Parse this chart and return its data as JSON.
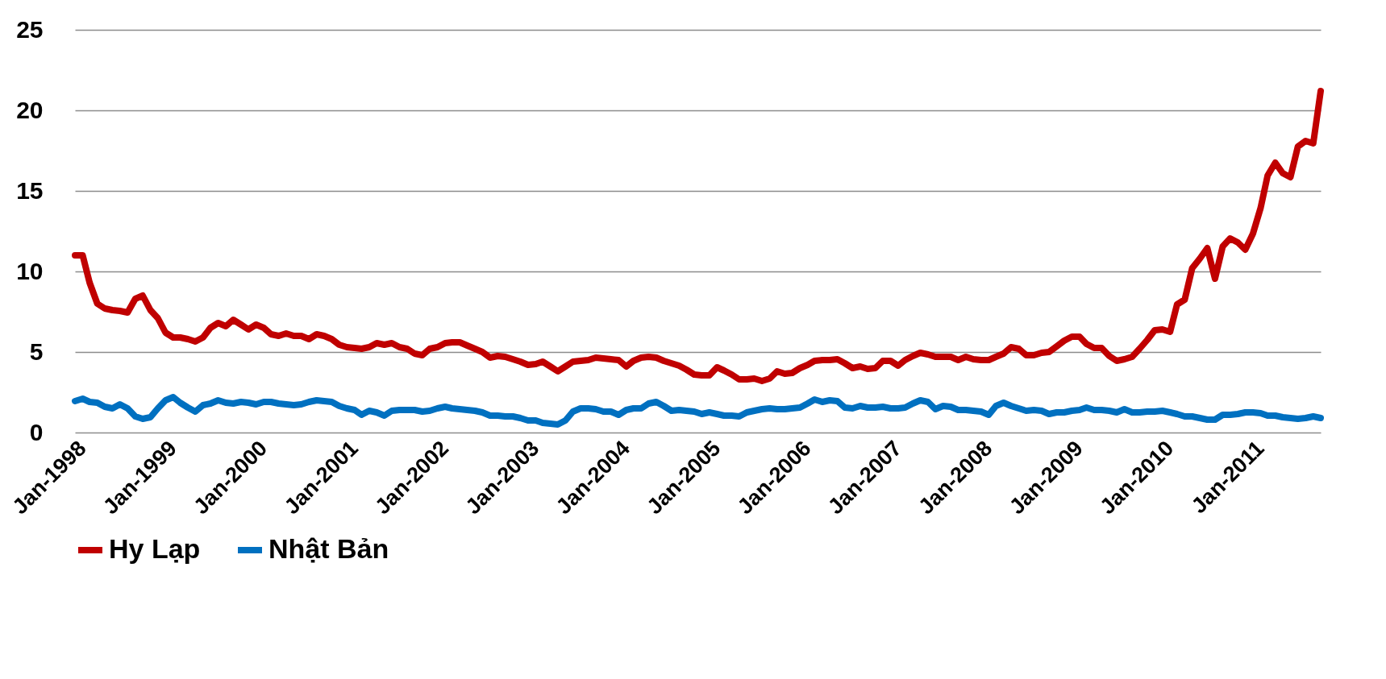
{
  "chart_data": {
    "type": "line",
    "x": [
      "1998-01",
      "1998-02",
      "1998-03",
      "1998-04",
      "1998-05",
      "1998-06",
      "1998-07",
      "1998-08",
      "1998-09",
      "1998-10",
      "1998-11",
      "1998-12",
      "1999-01",
      "1999-02",
      "1999-03",
      "1999-04",
      "1999-05",
      "1999-06",
      "1999-07",
      "1999-08",
      "1999-09",
      "1999-10",
      "1999-11",
      "1999-12",
      "2000-01",
      "2000-02",
      "2000-03",
      "2000-04",
      "2000-05",
      "2000-06",
      "2000-07",
      "2000-08",
      "2000-09",
      "2000-10",
      "2000-11",
      "2000-12",
      "2001-01",
      "2001-02",
      "2001-03",
      "2001-04",
      "2001-05",
      "2001-06",
      "2001-07",
      "2001-08",
      "2001-09",
      "2001-10",
      "2001-11",
      "2001-12",
      "2002-01",
      "2002-02",
      "2002-03",
      "2002-04",
      "2002-05",
      "2002-06",
      "2002-07",
      "2002-08",
      "2002-09",
      "2002-10",
      "2002-11",
      "2002-12",
      "2003-01",
      "2003-02",
      "2003-03",
      "2003-04",
      "2003-05",
      "2003-06",
      "2003-07",
      "2003-08",
      "2003-09",
      "2003-10",
      "2003-11",
      "2003-12",
      "2004-01",
      "2004-02",
      "2004-03",
      "2004-04",
      "2004-05",
      "2004-06",
      "2004-07",
      "2004-08",
      "2004-09",
      "2004-10",
      "2004-11",
      "2004-12",
      "2005-01",
      "2005-02",
      "2005-03",
      "2005-04",
      "2005-05",
      "2005-06",
      "2005-07",
      "2005-08",
      "2005-09",
      "2005-10",
      "2005-11",
      "2005-12",
      "2006-01",
      "2006-02",
      "2006-03",
      "2006-04",
      "2006-05",
      "2006-06",
      "2006-07",
      "2006-08",
      "2006-09",
      "2006-10",
      "2006-11",
      "2006-12",
      "2007-01",
      "2007-02",
      "2007-03",
      "2007-04",
      "2007-05",
      "2007-06",
      "2007-07",
      "2007-08",
      "2007-09",
      "2007-10",
      "2007-11",
      "2007-12",
      "2008-01",
      "2008-02",
      "2008-03",
      "2008-04",
      "2008-05",
      "2008-06",
      "2008-07",
      "2008-08",
      "2008-09",
      "2008-10",
      "2008-11",
      "2008-12",
      "2009-01",
      "2009-02",
      "2009-03",
      "2009-04",
      "2009-05",
      "2009-06",
      "2009-07",
      "2009-08",
      "2009-09",
      "2009-10",
      "2009-11",
      "2009-12",
      "2010-01",
      "2010-02",
      "2010-03",
      "2010-04",
      "2010-05",
      "2010-06",
      "2010-07",
      "2010-08",
      "2010-09",
      "2010-10",
      "2010-11",
      "2010-12",
      "2011-01",
      "2011-02",
      "2011-03",
      "2011-04",
      "2011-05",
      "2011-06",
      "2011-07",
      "2011-08",
      "2011-09",
      "2011-10"
    ],
    "series": [
      {
        "name": "Hy Lạp",
        "color": "#c00000",
        "values": [
          11.0,
          11.0,
          9.3,
          8.0,
          7.7,
          7.6,
          7.55,
          7.45,
          8.3,
          8.5,
          7.6,
          7.1,
          6.2,
          5.9,
          5.9,
          5.8,
          5.65,
          5.9,
          6.5,
          6.8,
          6.6,
          7.0,
          6.7,
          6.4,
          6.7,
          6.5,
          6.1,
          6.0,
          6.15,
          6.0,
          6.0,
          5.8,
          6.1,
          6.0,
          5.8,
          5.45,
          5.3,
          5.25,
          5.2,
          5.3,
          5.55,
          5.45,
          5.55,
          5.3,
          5.2,
          4.9,
          4.8,
          5.2,
          5.3,
          5.55,
          5.6,
          5.6,
          5.4,
          5.2,
          5.0,
          4.65,
          4.75,
          4.7,
          4.55,
          4.4,
          4.2,
          4.25,
          4.4,
          4.1,
          3.8,
          4.1,
          4.4,
          4.45,
          4.5,
          4.65,
          4.6,
          4.55,
          4.5,
          4.1,
          4.45,
          4.65,
          4.7,
          4.65,
          4.45,
          4.3,
          4.15,
          3.9,
          3.6,
          3.55,
          3.55,
          4.05,
          3.85,
          3.6,
          3.3,
          3.3,
          3.35,
          3.2,
          3.35,
          3.8,
          3.65,
          3.7,
          4.0,
          4.2,
          4.45,
          4.5,
          4.5,
          4.55,
          4.3,
          4.0,
          4.1,
          3.95,
          4.0,
          4.45,
          4.45,
          4.15,
          4.5,
          4.75,
          4.95,
          4.85,
          4.7,
          4.7,
          4.7,
          4.5,
          4.7,
          4.55,
          4.5,
          4.5,
          4.7,
          4.9,
          5.3,
          5.2,
          4.8,
          4.8,
          4.95,
          5.0,
          5.35,
          5.7,
          5.95,
          5.95,
          5.5,
          5.25,
          5.25,
          4.75,
          4.45,
          4.55,
          4.7,
          5.2,
          5.75,
          6.35,
          6.4,
          6.25,
          7.95,
          8.25,
          10.2,
          10.8,
          11.45,
          9.55,
          11.55,
          12.05,
          11.8,
          11.35,
          12.35,
          13.95,
          15.95,
          16.75,
          16.1,
          15.85,
          17.75,
          18.1,
          17.95,
          21.2
        ]
      },
      {
        "name": "Nhật Bản",
        "color": "#0070c0",
        "values": [
          1.95,
          2.1,
          1.9,
          1.85,
          1.6,
          1.5,
          1.75,
          1.5,
          1.0,
          0.85,
          0.95,
          1.5,
          2.0,
          2.2,
          1.85,
          1.55,
          1.3,
          1.7,
          1.8,
          2.0,
          1.85,
          1.8,
          1.9,
          1.85,
          1.75,
          1.9,
          1.9,
          1.8,
          1.75,
          1.7,
          1.75,
          1.9,
          2.0,
          1.95,
          1.9,
          1.65,
          1.5,
          1.4,
          1.1,
          1.35,
          1.25,
          1.05,
          1.35,
          1.4,
          1.4,
          1.4,
          1.3,
          1.35,
          1.5,
          1.6,
          1.5,
          1.45,
          1.4,
          1.35,
          1.25,
          1.05,
          1.05,
          1.0,
          1.0,
          0.9,
          0.75,
          0.75,
          0.6,
          0.55,
          0.5,
          0.75,
          1.3,
          1.5,
          1.5,
          1.45,
          1.3,
          1.3,
          1.1,
          1.4,
          1.5,
          1.5,
          1.8,
          1.9,
          1.65,
          1.35,
          1.4,
          1.35,
          1.3,
          1.15,
          1.25,
          1.15,
          1.05,
          1.05,
          1.0,
          1.25,
          1.35,
          1.45,
          1.5,
          1.45,
          1.45,
          1.5,
          1.55,
          1.8,
          2.05,
          1.9,
          2.0,
          1.95,
          1.55,
          1.5,
          1.65,
          1.55,
          1.55,
          1.6,
          1.5,
          1.5,
          1.55,
          1.8,
          2.0,
          1.9,
          1.45,
          1.65,
          1.6,
          1.4,
          1.4,
          1.35,
          1.3,
          1.1,
          1.65,
          1.85,
          1.65,
          1.5,
          1.35,
          1.4,
          1.35,
          1.15,
          1.25,
          1.25,
          1.35,
          1.4,
          1.55,
          1.4,
          1.4,
          1.35,
          1.25,
          1.45,
          1.25,
          1.25,
          1.3,
          1.3,
          1.35,
          1.25,
          1.15,
          1.0,
          1.0,
          0.9,
          0.8,
          0.8,
          1.1,
          1.1,
          1.15,
          1.25,
          1.25,
          1.2,
          1.05,
          1.05,
          0.95,
          0.9,
          0.85,
          0.9,
          1.0,
          0.9
        ]
      }
    ],
    "xlim": [
      "1998-01",
      "2011-10"
    ],
    "xticks": [
      {
        "value": "1998-01",
        "label": "Jan-1998"
      },
      {
        "value": "1999-01",
        "label": "Jan-1999"
      },
      {
        "value": "2000-01",
        "label": "Jan-2000"
      },
      {
        "value": "2001-01",
        "label": "Jan-2001"
      },
      {
        "value": "2002-01",
        "label": "Jan-2002"
      },
      {
        "value": "2003-01",
        "label": "Jan-2003"
      },
      {
        "value": "2004-01",
        "label": "Jan-2004"
      },
      {
        "value": "2005-01",
        "label": "Jan-2005"
      },
      {
        "value": "2006-01",
        "label": "Jan-2006"
      },
      {
        "value": "2007-01",
        "label": "Jan-2007"
      },
      {
        "value": "2008-01",
        "label": "Jan-2008"
      },
      {
        "value": "2009-01",
        "label": "Jan-2009"
      },
      {
        "value": "2010-01",
        "label": "Jan-2010"
      },
      {
        "value": "2011-01",
        "label": "Jan-2011"
      }
    ],
    "ylim": [
      0,
      25
    ],
    "yticks": [
      0,
      5,
      10,
      15,
      20,
      25
    ],
    "grid": "y",
    "legend": "bottom",
    "marker": "none",
    "line_style": "solid"
  }
}
